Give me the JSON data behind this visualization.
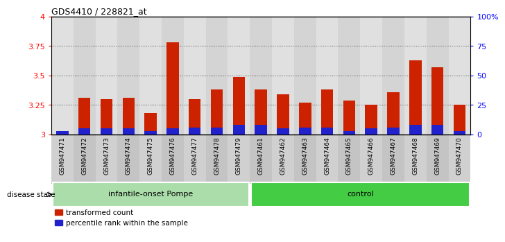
{
  "title": "GDS4410 / 228821_at",
  "samples": [
    "GSM947471",
    "GSM947472",
    "GSM947473",
    "GSM947474",
    "GSM947475",
    "GSM947476",
    "GSM947477",
    "GSM947478",
    "GSM947479",
    "GSM947461",
    "GSM947462",
    "GSM947463",
    "GSM947464",
    "GSM947465",
    "GSM947466",
    "GSM947467",
    "GSM947468",
    "GSM947469",
    "GSM947470"
  ],
  "red_values": [
    3.02,
    3.31,
    3.3,
    3.31,
    3.18,
    3.78,
    3.3,
    3.38,
    3.49,
    3.38,
    3.34,
    3.27,
    3.38,
    3.29,
    3.25,
    3.36,
    3.63,
    3.57,
    3.25
  ],
  "blue_values": [
    3,
    5,
    5,
    5,
    3,
    5,
    6,
    6,
    8,
    8,
    5,
    6,
    6,
    3,
    5,
    6,
    8,
    8,
    3
  ],
  "groups": [
    {
      "label": "infantile-onset Pompe",
      "start": 0,
      "end": 9,
      "color": "#aaddaa"
    },
    {
      "label": "control",
      "start": 9,
      "end": 19,
      "color": "#44cc44"
    }
  ],
  "disease_state_label": "disease state",
  "ylim_left": [
    3.0,
    4.0
  ],
  "ylim_right": [
    0,
    100
  ],
  "yticks_left": [
    3.0,
    3.25,
    3.5,
    3.75,
    4.0
  ],
  "ytick_labels_left": [
    "3",
    "3.25",
    "3.5",
    "3.75",
    "4"
  ],
  "yticks_right": [
    0,
    25,
    50,
    75,
    100
  ],
  "ytick_labels_right": [
    "0",
    "25",
    "50",
    "75",
    "100%"
  ],
  "bar_color_red": "#cc2200",
  "bar_color_blue": "#2222cc",
  "base_value": 3.0,
  "bar_width": 0.55,
  "legend_red": "transformed count",
  "legend_blue": "percentile rank within the sample",
  "grid_color": "#888888",
  "tick_bg_color": "#c8c8c8"
}
